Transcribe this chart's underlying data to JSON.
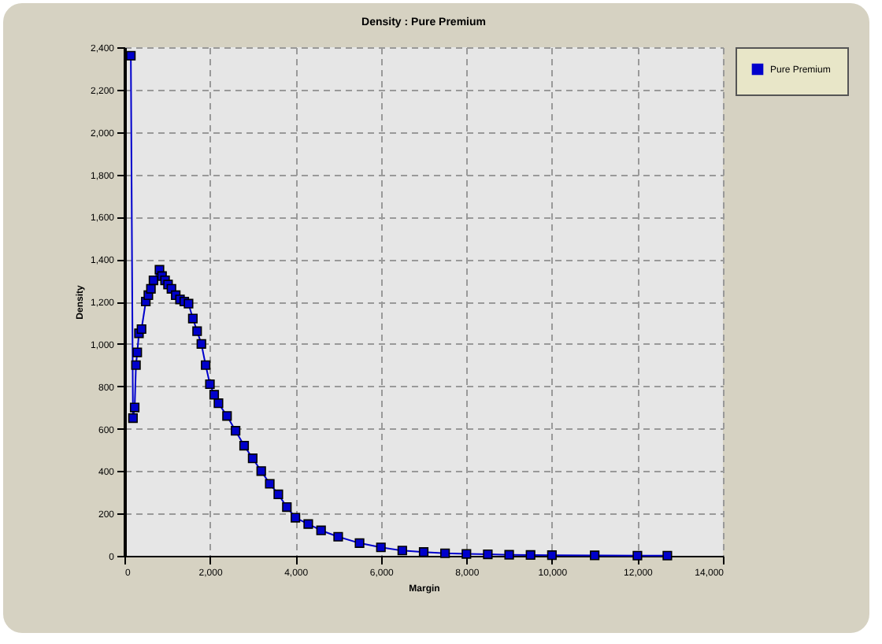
{
  "chart_data": {
    "type": "line",
    "title": "Density : Pure Premium",
    "xlabel": "Margin",
    "ylabel": "Density",
    "x": [
      150,
      200,
      240,
      270,
      300,
      340,
      400,
      500,
      560,
      620,
      680,
      820,
      880,
      950,
      1020,
      1100,
      1200,
      1300,
      1400,
      1500,
      1600,
      1700,
      1800,
      1900,
      2000,
      2100,
      2200,
      2400,
      2600,
      2800,
      3000,
      3200,
      3400,
      3600,
      3800,
      4000,
      4300,
      4600,
      5000,
      5500,
      6000,
      6500,
      7000,
      7500,
      8000,
      8500,
      9000,
      9500,
      10000,
      11000,
      12000,
      12700
    ],
    "series": [
      {
        "name": "Pure Premium",
        "color": "#0000cc",
        "values": [
          2360,
          650,
          700,
          900,
          960,
          1050,
          1070,
          1200,
          1230,
          1260,
          1300,
          1350,
          1320,
          1300,
          1280,
          1260,
          1230,
          1210,
          1200,
          1190,
          1120,
          1060,
          1000,
          900,
          810,
          760,
          720,
          660,
          590,
          520,
          460,
          400,
          340,
          290,
          230,
          180,
          150,
          120,
          90,
          60,
          40,
          25,
          18,
          12,
          9,
          7,
          5,
          4,
          3,
          2,
          1,
          1
        ]
      }
    ],
    "xlim": [
      0,
      14000
    ],
    "xticks": [
      0,
      {
        "value": 2000,
        "label": "2,000"
      },
      {
        "value": 4000,
        "label": "4,000"
      },
      {
        "value": 6000,
        "label": "6,000"
      },
      {
        "value": 8000,
        "label": "8,000"
      },
      {
        "value": 10000,
        "label": "10,000"
      },
      {
        "value": 12000,
        "label": "12,000"
      },
      {
        "value": 14000,
        "label": "14,000"
      }
    ],
    "ylim": [
      0,
      2400
    ],
    "yticks": [
      0,
      200,
      400,
      600,
      800,
      {
        "value": 1000,
        "label": "1,000"
      },
      {
        "value": 1200,
        "label": "1,200"
      },
      {
        "value": 1400,
        "label": "1,400"
      },
      {
        "value": 1600,
        "label": "1,600"
      },
      {
        "value": 1800,
        "label": "1,800"
      },
      {
        "value": 2000,
        "label": "2,000"
      },
      {
        "value": 2200,
        "label": "2,200"
      },
      {
        "value": 2400,
        "label": "2,400"
      }
    ],
    "grid": true,
    "legend": "right",
    "marker": "square",
    "line_style": "solid"
  }
}
